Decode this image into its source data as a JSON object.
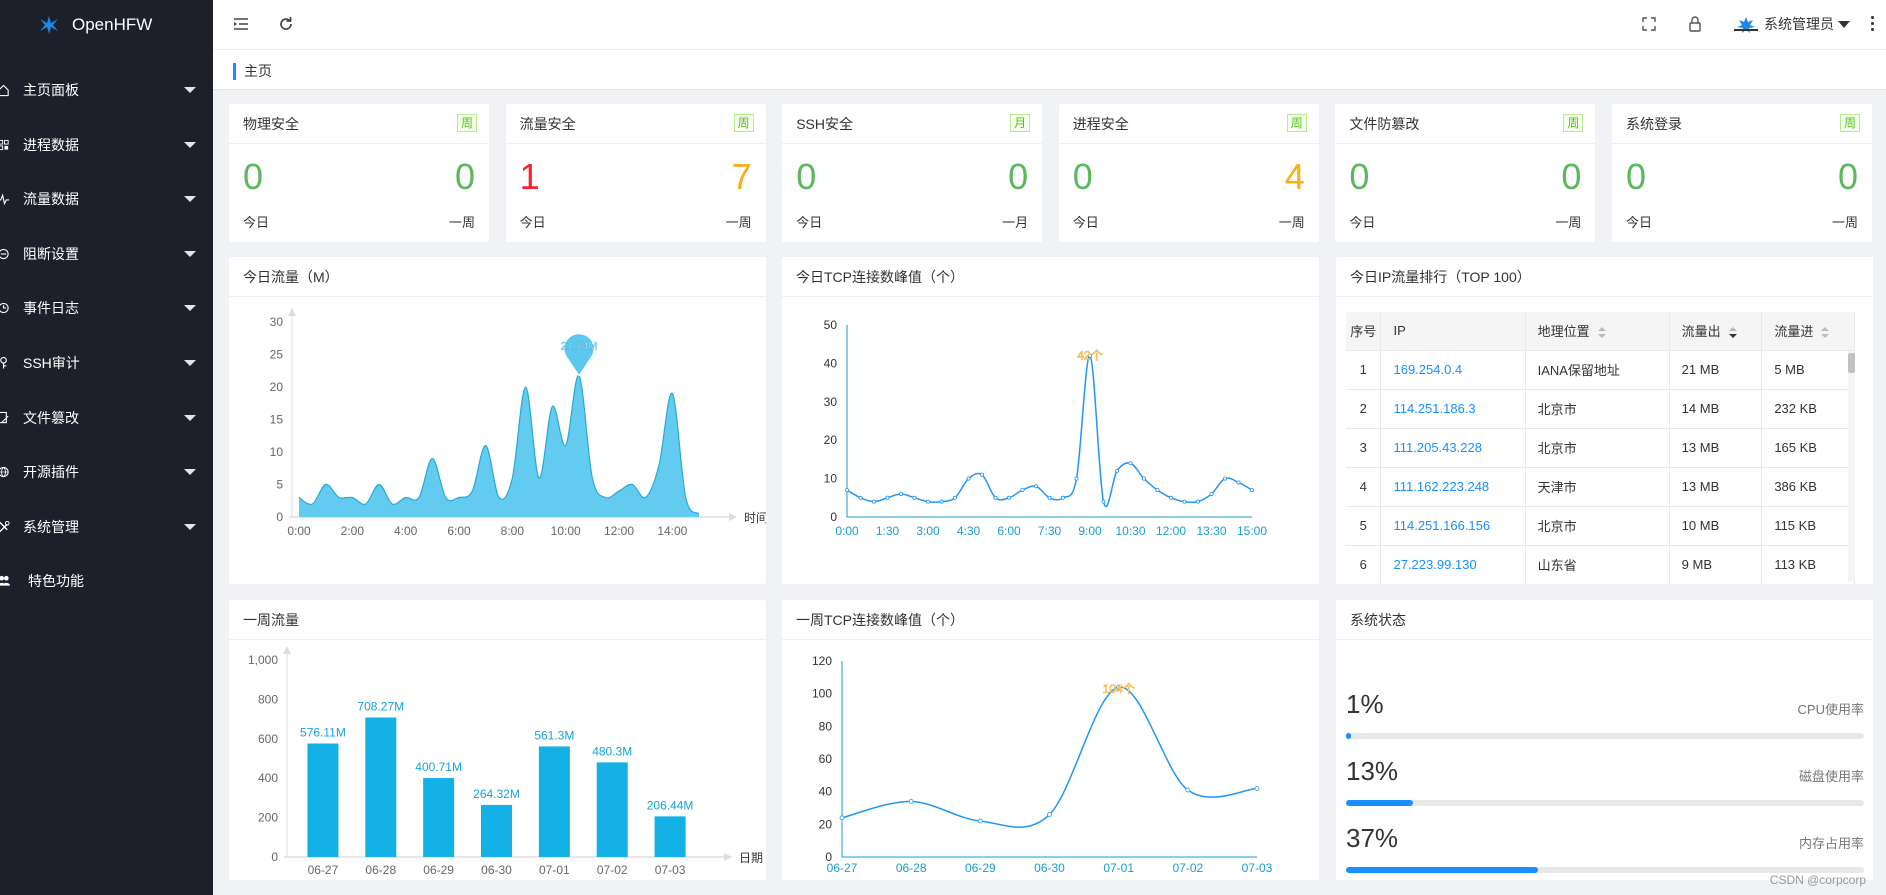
{
  "app": {
    "title": "OpenHFW"
  },
  "sidebar": {
    "items": [
      {
        "label": "主页面板",
        "icon": "home-icon"
      },
      {
        "label": "进程数据",
        "icon": "process-icon"
      },
      {
        "label": "流量数据",
        "icon": "pulse-icon"
      },
      {
        "label": "阻断设置",
        "icon": "block-icon"
      },
      {
        "label": "事件日志",
        "icon": "clock-icon"
      },
      {
        "label": "SSH审计",
        "icon": "key-icon"
      },
      {
        "label": "文件篡改",
        "icon": "file-edit-icon"
      },
      {
        "label": "开源插件",
        "icon": "globe-icon"
      },
      {
        "label": "系统管理",
        "icon": "tools-icon"
      },
      {
        "label": "特色功能",
        "icon": "users-icon"
      }
    ]
  },
  "header": {
    "user": "系统管理员"
  },
  "breadcrumb": {
    "label": "主页"
  },
  "stats": [
    {
      "title": "物理安全",
      "badge": "周",
      "today": "0",
      "period": "0",
      "today_label": "今日",
      "period_label": "一周",
      "today_color": "#5cb85c",
      "period_color": "#5cb85c"
    },
    {
      "title": "流量安全",
      "badge": "周",
      "today": "1",
      "period": "7",
      "today_label": "今日",
      "period_label": "一周",
      "today_color": "#f5222d",
      "period_color": "#faad14"
    },
    {
      "title": "SSH安全",
      "badge": "月",
      "today": "0",
      "period": "0",
      "today_label": "今日",
      "period_label": "一月",
      "today_color": "#5cb85c",
      "period_color": "#5cb85c"
    },
    {
      "title": "进程安全",
      "badge": "周",
      "today": "0",
      "period": "4",
      "today_label": "今日",
      "period_label": "一周",
      "today_color": "#5cb85c",
      "period_color": "#faad14"
    },
    {
      "title": "文件防篡改",
      "badge": "周",
      "today": "0",
      "period": "0",
      "today_label": "今日",
      "period_label": "一周",
      "today_color": "#5cb85c",
      "period_color": "#5cb85c"
    },
    {
      "title": "系统登录",
      "badge": "周",
      "today": "0",
      "period": "0",
      "today_label": "今日",
      "period_label": "一周",
      "today_color": "#5cb85c",
      "period_color": "#5cb85c"
    }
  ],
  "panels": {
    "today_traffic": "今日流量（M）",
    "today_tcp": "今日TCP连接数峰值（个）",
    "ip_rank": "今日IP流量排行（TOP 100）",
    "week_traffic": "一周流量",
    "week_tcp": "一周TCP连接数峰值（个）",
    "sys_status": "系统状态"
  },
  "ip_table": {
    "headers": [
      "序号",
      "IP",
      "地理位置",
      "流量出",
      "流量进"
    ],
    "rows": [
      [
        "1",
        "169.254.0.4",
        "IANA保留地址",
        "21 MB",
        "5 MB"
      ],
      [
        "2",
        "114.251.186.3",
        "北京市",
        "14 MB",
        "232 KB"
      ],
      [
        "3",
        "111.205.43.228",
        "北京市",
        "13 MB",
        "165 KB"
      ],
      [
        "4",
        "111.162.223.248",
        "天津市",
        "13 MB",
        "386 KB"
      ],
      [
        "5",
        "114.251.166.156",
        "北京市",
        "10 MB",
        "115 KB"
      ],
      [
        "6",
        "27.223.99.130",
        "山东省",
        "9 MB",
        "113 KB"
      ]
    ]
  },
  "system_status": [
    {
      "pct": "1%",
      "label": "CPU使用率",
      "value": 1
    },
    {
      "pct": "13%",
      "label": "磁盘使用率",
      "value": 13
    },
    {
      "pct": "37%",
      "label": "内存占用率",
      "value": 37
    }
  ],
  "watermark": "CSDN @corpcorp",
  "colors": {
    "accent": "#1890ff",
    "sidebar": "#1d1f2a",
    "area": "#5bc8ef",
    "bar": "#14b1e7",
    "line": "#2196f3"
  },
  "chart_data": [
    {
      "id": "today_traffic",
      "type": "area",
      "title": "今日流量（M）",
      "xlabel": "时间",
      "ylim": [
        0,
        30
      ],
      "yticks": [
        "0",
        "5",
        "10",
        "15",
        "20",
        "25",
        "30"
      ],
      "xticks": [
        "0:00",
        "2:00",
        "4:00",
        "6:00",
        "8:00",
        "10:00",
        "12:00",
        "14:00"
      ],
      "x": [
        0,
        0.5,
        1,
        1.5,
        2,
        2.5,
        3,
        3.5,
        4,
        4.5,
        5,
        5.5,
        6,
        6.5,
        7,
        7.5,
        8,
        8.5,
        9,
        9.5,
        10,
        10.5,
        11,
        11.5,
        12,
        12.5,
        13,
        13.5,
        14,
        14.5,
        15
      ],
      "values": [
        3,
        2,
        5,
        3,
        3,
        2,
        5,
        2,
        3,
        3,
        9,
        3,
        3,
        4,
        11,
        3,
        6,
        20,
        6,
        17,
        11,
        21.74,
        6,
        3,
        4,
        5,
        3,
        8,
        19,
        3,
        0.5
      ],
      "peak_label": "21.74M"
    },
    {
      "id": "today_tcp",
      "type": "line",
      "title": "今日TCP连接数峰值（个）",
      "ylim": [
        0,
        50
      ],
      "yticks": [
        "0",
        "10",
        "20",
        "30",
        "40",
        "50"
      ],
      "xticks": [
        "0:00",
        "1:30",
        "3:00",
        "4:30",
        "6:00",
        "7:30",
        "9:00",
        "10:30",
        "12:00",
        "13:30",
        "15:00"
      ],
      "x": [
        0,
        0.5,
        1,
        1.5,
        2,
        2.5,
        3,
        3.5,
        4,
        4.5,
        5,
        5.5,
        6,
        6.5,
        7,
        7.5,
        8,
        8.5,
        9,
        9.5,
        10,
        10.5,
        11,
        11.5,
        12,
        12.5,
        13,
        13.5,
        14,
        14.5,
        15
      ],
      "values": [
        7,
        5,
        4,
        5,
        6,
        5,
        4,
        4,
        5,
        10,
        11,
        5,
        5,
        7,
        8,
        5,
        5,
        10,
        42,
        4,
        12,
        14,
        10,
        7,
        5,
        4,
        4,
        6,
        10,
        9,
        7
      ],
      "peak_label": "42个"
    },
    {
      "id": "week_traffic",
      "type": "bar",
      "title": "一周流量",
      "xlabel": "日期",
      "ylim": [
        0,
        1000
      ],
      "yticks": [
        "0",
        "200",
        "400",
        "600",
        "800",
        "1,000"
      ],
      "categories": [
        "06-27",
        "06-28",
        "06-29",
        "06-30",
        "07-01",
        "07-02",
        "07-03"
      ],
      "values": [
        576.11,
        708.27,
        400.71,
        264.32,
        561.3,
        480.3,
        206.44
      ],
      "labels": [
        "576.11M",
        "708.27M",
        "400.71M",
        "264.32M",
        "561.3M",
        "480.3M",
        "206.44M"
      ]
    },
    {
      "id": "week_tcp",
      "type": "line",
      "title": "一周TCP连接数峰值（个）",
      "ylim": [
        0,
        120
      ],
      "yticks": [
        "0",
        "20",
        "40",
        "60",
        "80",
        "100",
        "120"
      ],
      "categories": [
        "06-27",
        "06-28",
        "06-29",
        "06-30",
        "07-01",
        "07-02",
        "07-03"
      ],
      "values": [
        24,
        34,
        22,
        26,
        104,
        41,
        42
      ],
      "peak_label": "104个"
    }
  ]
}
